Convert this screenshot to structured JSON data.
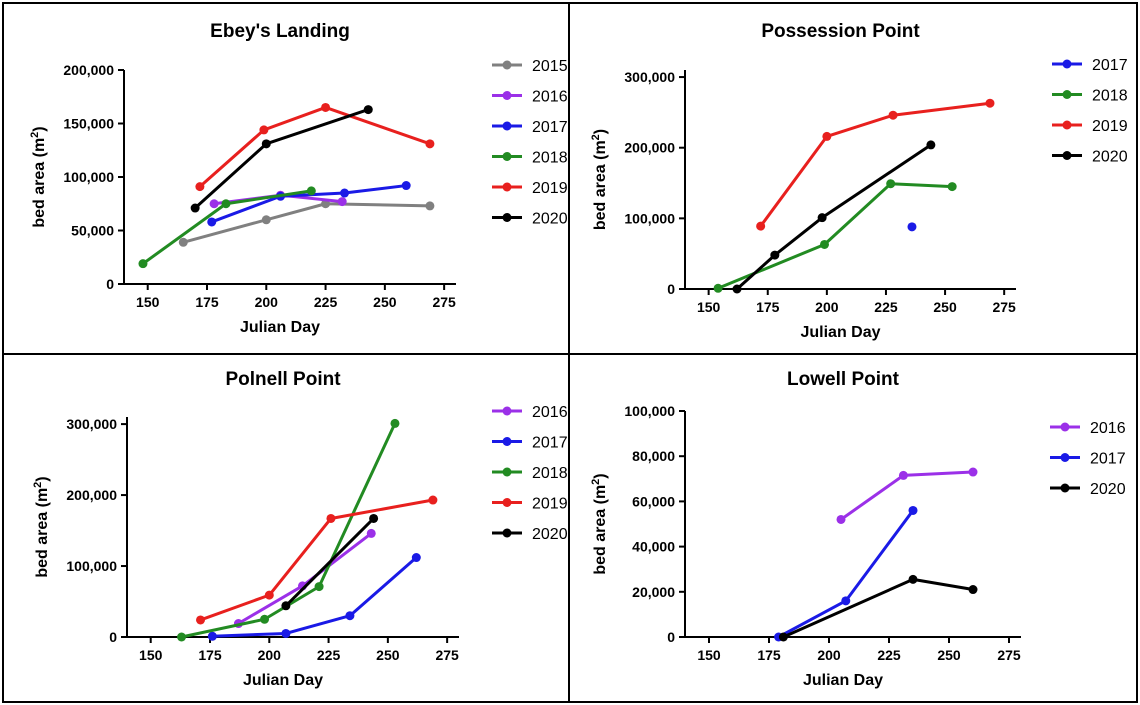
{
  "charts": [
    {
      "type": "line",
      "title": "Ebey's Landing",
      "xlabel": "Julian Day",
      "ylabel": "bed area (m",
      "ylabel_sup": "2",
      "ylabel_end": ")",
      "xlim": [
        140,
        280
      ],
      "ylim": [
        0,
        200000
      ],
      "xticks": [
        150,
        175,
        200,
        225,
        250,
        275
      ],
      "yticks": [
        0,
        50000,
        100000,
        150000,
        200000
      ],
      "ytick_labels": [
        "0",
        "50,000",
        "100,000",
        "150,000",
        "200,000"
      ],
      "series": [
        {
          "name": "2015",
          "color": "#808080",
          "x": [
            165,
            200,
            225,
            269
          ],
          "y": [
            39000,
            60000,
            75000,
            73000
          ]
        },
        {
          "name": "2016",
          "color": "#9b30e8",
          "x": [
            178,
            206,
            232
          ],
          "y": [
            75000,
            83000,
            77000
          ]
        },
        {
          "name": "2017",
          "color": "#1a1ae6",
          "x": [
            177,
            206,
            233,
            259
          ],
          "y": [
            58000,
            82000,
            85000,
            92000
          ]
        },
        {
          "name": "2018",
          "color": "#228b22",
          "x": [
            148,
            183,
            219
          ],
          "y": [
            19000,
            75000,
            87000
          ]
        },
        {
          "name": "2019",
          "color": "#e8201e",
          "x": [
            172,
            199,
            225,
            269
          ],
          "y": [
            91000,
            144000,
            165000,
            131000
          ]
        },
        {
          "name": "2020",
          "color": "#000000",
          "x": [
            170,
            200,
            243
          ],
          "y": [
            71000,
            131000,
            163000
          ]
        }
      ]
    },
    {
      "type": "line",
      "title": "Possession Point",
      "xlabel": "Julian Day",
      "ylabel": "bed area (m",
      "ylabel_sup": "2",
      "ylabel_end": ")",
      "xlim": [
        140,
        280
      ],
      "ylim": [
        0,
        310000
      ],
      "xticks": [
        150,
        175,
        200,
        225,
        250,
        275
      ],
      "yticks": [
        0,
        100000,
        200000,
        300000
      ],
      "ytick_labels": [
        "0",
        "100,000",
        "200,000",
        "300,000"
      ],
      "series": [
        {
          "name": "2017",
          "color": "#1a1ae6",
          "x": [
            236
          ],
          "y": [
            88000
          ]
        },
        {
          "name": "2018",
          "color": "#228b22",
          "x": [
            154,
            199,
            227,
            253
          ],
          "y": [
            1000,
            63000,
            149000,
            145000
          ]
        },
        {
          "name": "2019",
          "color": "#e8201e",
          "x": [
            172,
            200,
            228,
            269
          ],
          "y": [
            89000,
            216000,
            246000,
            263000
          ]
        },
        {
          "name": "2020",
          "color": "#000000",
          "x": [
            162,
            178,
            198,
            244
          ],
          "y": [
            0,
            48000,
            101000,
            204000
          ]
        }
      ]
    },
    {
      "type": "line",
      "title": "Polnell Point",
      "xlabel": "Julian Day",
      "ylabel": "bed area (m",
      "ylabel_sup": "2",
      "ylabel_end": ")",
      "xlim": [
        140,
        280
      ],
      "ylim": [
        0,
        310000
      ],
      "xticks": [
        150,
        175,
        200,
        225,
        250,
        275
      ],
      "yticks": [
        0,
        100000,
        200000,
        300000
      ],
      "ytick_labels": [
        "0",
        "100,000",
        "200,000",
        "300,000"
      ],
      "series": [
        {
          "name": "2016",
          "color": "#9b30e8",
          "x": [
            187,
            214,
            243
          ],
          "y": [
            19000,
            72000,
            146000
          ]
        },
        {
          "name": "2017",
          "color": "#1a1ae6",
          "x": [
            176,
            207,
            234,
            262
          ],
          "y": [
            1000,
            5000,
            30000,
            112000
          ]
        },
        {
          "name": "2018",
          "color": "#228b22",
          "x": [
            163,
            198,
            221,
            253
          ],
          "y": [
            0,
            25000,
            71000,
            301000
          ]
        },
        {
          "name": "2019",
          "color": "#e8201e",
          "x": [
            171,
            200,
            226,
            269
          ],
          "y": [
            24000,
            59000,
            167000,
            193000
          ]
        },
        {
          "name": "2020",
          "color": "#000000",
          "x": [
            207,
            244
          ],
          "y": [
            44000,
            167000
          ]
        }
      ]
    },
    {
      "type": "line",
      "title": "Lowell Point",
      "xlabel": "Julian Day",
      "ylabel": "bed area (m",
      "ylabel_sup": "2",
      "ylabel_end": ")",
      "xlim": [
        140,
        280
      ],
      "ylim": [
        0,
        100000
      ],
      "xticks": [
        150,
        175,
        200,
        225,
        250,
        275
      ],
      "yticks": [
        0,
        20000,
        40000,
        60000,
        80000,
        100000
      ],
      "ytick_labels": [
        "0",
        "20,000",
        "40,000",
        "60,000",
        "80,000",
        "100,000"
      ],
      "series": [
        {
          "name": "2016",
          "color": "#9b30e8",
          "x": [
            205,
            231,
            260
          ],
          "y": [
            52000,
            71500,
            73000
          ]
        },
        {
          "name": "2017",
          "color": "#1a1ae6",
          "x": [
            179,
            207,
            235
          ],
          "y": [
            0,
            16000,
            56000
          ]
        },
        {
          "name": "2020",
          "color": "#000000",
          "x": [
            181,
            235,
            260
          ],
          "y": [
            0,
            25500,
            21000
          ]
        }
      ]
    }
  ]
}
